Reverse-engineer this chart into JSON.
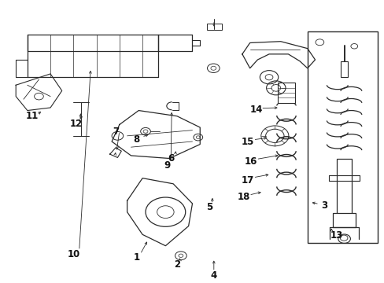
{
  "background_color": "#ffffff",
  "line_color": "#2a2a2a",
  "label_color": "#111111",
  "fig_width": 4.89,
  "fig_height": 3.6,
  "dpi": 100
}
